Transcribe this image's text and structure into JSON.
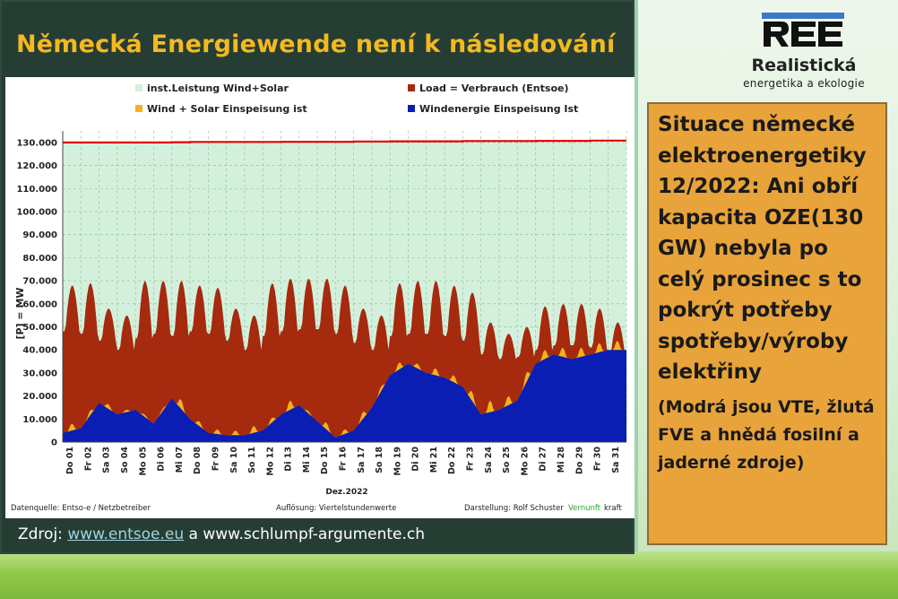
{
  "slide": {
    "title": "Německá Energiewende není k následování",
    "source_prefix": "Zdroj: ",
    "source_link": "www.entsoe.eu",
    "source_suffix": " a www.schlumpf-argumente.ch"
  },
  "logo": {
    "mark": "REE",
    "name": "Realistická",
    "subtitle": "energetika a ekologie"
  },
  "callout": {
    "main": "Situace německé elektroenergetiky 12/2022: Ani obří kapacita OZE(130 GW) nebyla po celý prosinec s to pokrýt potřeby spotřeby/výroby elektřiny",
    "note": "(Modrá jsou VTE, žlutá FVE a hnědá fosilní a jaderné zdroje)"
  },
  "colors": {
    "title": "#f3b920",
    "slide_bg": "#263d33",
    "callout_bg": "#e8a33a",
    "installed": "#e60000",
    "installed_fill": "#d4f0dc",
    "load": "#a52a0e",
    "solar": "#f5b21a",
    "wind": "#0a1eb4",
    "vernunft": "#22aa22"
  },
  "chart_data": {
    "type": "area",
    "ylabel": "[P] = MW",
    "xlabel": "Dez.2022",
    "ylim": [
      0,
      135000
    ],
    "yticks": [
      0,
      10000,
      20000,
      30000,
      40000,
      50000,
      60000,
      70000,
      80000,
      90000,
      100000,
      110000,
      120000,
      130000
    ],
    "ytick_labels": [
      "0",
      "10.000",
      "20.000",
      "30.000",
      "40.000",
      "50.000",
      "60.000",
      "70.000",
      "80.000",
      "90.000",
      "100.000",
      "110.000",
      "120.000",
      "130.000"
    ],
    "grid": true,
    "legend_position": "top",
    "categories": [
      "Do 01",
      "Fr 02",
      "Sa 03",
      "So 04",
      "Mo 05",
      "Di 06",
      "Mi 07",
      "Do 08",
      "Fr 09",
      "Sa 10",
      "So 11",
      "Mo 12",
      "Di 13",
      "Mi 14",
      "Do 15",
      "Fr 16",
      "Sa 17",
      "So 18",
      "Mo 19",
      "Di 20",
      "Mi 21",
      "Do 22",
      "Fr 23",
      "Sa 24",
      "So 25",
      "Mo 26",
      "Di 27",
      "Mi 28",
      "Do 29",
      "Fr 30",
      "Sa 31"
    ],
    "series": [
      {
        "name": "inst.Leistung Wind+Solar",
        "values": [
          130000,
          130000,
          130000,
          130000,
          130000,
          130000,
          130100,
          130200,
          130200,
          130200,
          130200,
          130200,
          130300,
          130300,
          130300,
          130300,
          130400,
          130400,
          130500,
          130500,
          130500,
          130500,
          130600,
          130600,
          130600,
          130600,
          130700,
          130700,
          130700,
          130800,
          130800
        ]
      },
      {
        "name": "Load = Verbrauch (Entsoe)",
        "daily_min": [
          48000,
          47000,
          44000,
          40000,
          45000,
          47000,
          46000,
          48000,
          47000,
          44000,
          40000,
          46000,
          48000,
          49000,
          49000,
          47000,
          43000,
          40000,
          46000,
          47000,
          47000,
          46000,
          44000,
          38000,
          36000,
          37000,
          40000,
          42000,
          42000,
          41000,
          38000
        ],
        "daily_max": [
          68000,
          69000,
          58000,
          55000,
          70000,
          70000,
          70000,
          68000,
          67000,
          58000,
          55000,
          69000,
          71000,
          71000,
          71000,
          68000,
          58000,
          55000,
          69000,
          70000,
          70000,
          68000,
          65000,
          52000,
          47000,
          50000,
          59000,
          60000,
          60000,
          58000,
          52000
        ]
      },
      {
        "name": "Wind + Solar Einspeisung ist",
        "daily_peak": [
          7000,
          8000,
          19000,
          13000,
          15000,
          9000,
          23000,
          12000,
          6000,
          5000,
          6000,
          7000,
          16000,
          17000,
          12000,
          4000,
          8000,
          17000,
          32000,
          36000,
          33000,
          31000,
          28000,
          17000,
          18000,
          22000,
          38000,
          42000,
          40000,
          42000,
          44000
        ]
      },
      {
        "name": "Windenergie Einspeisung Ist",
        "values": [
          4000,
          6000,
          17000,
          12000,
          14000,
          8000,
          19000,
          10000,
          4000,
          3000,
          3000,
          5000,
          12000,
          16000,
          9000,
          2000,
          5000,
          15000,
          29000,
          34000,
          30000,
          28000,
          24000,
          12000,
          14000,
          18000,
          34000,
          38000,
          36000,
          38000,
          40000
        ]
      }
    ],
    "footer": {
      "left": "Datenquelle: Entso-e  / Netzbetreiber",
      "middle": "Auflösung: Viertelstundenwerte",
      "right_prefix": "Darstellung: Rolf Schuster",
      "right_brand_a": "Vernunft",
      "right_brand_b": "kraft"
    }
  }
}
